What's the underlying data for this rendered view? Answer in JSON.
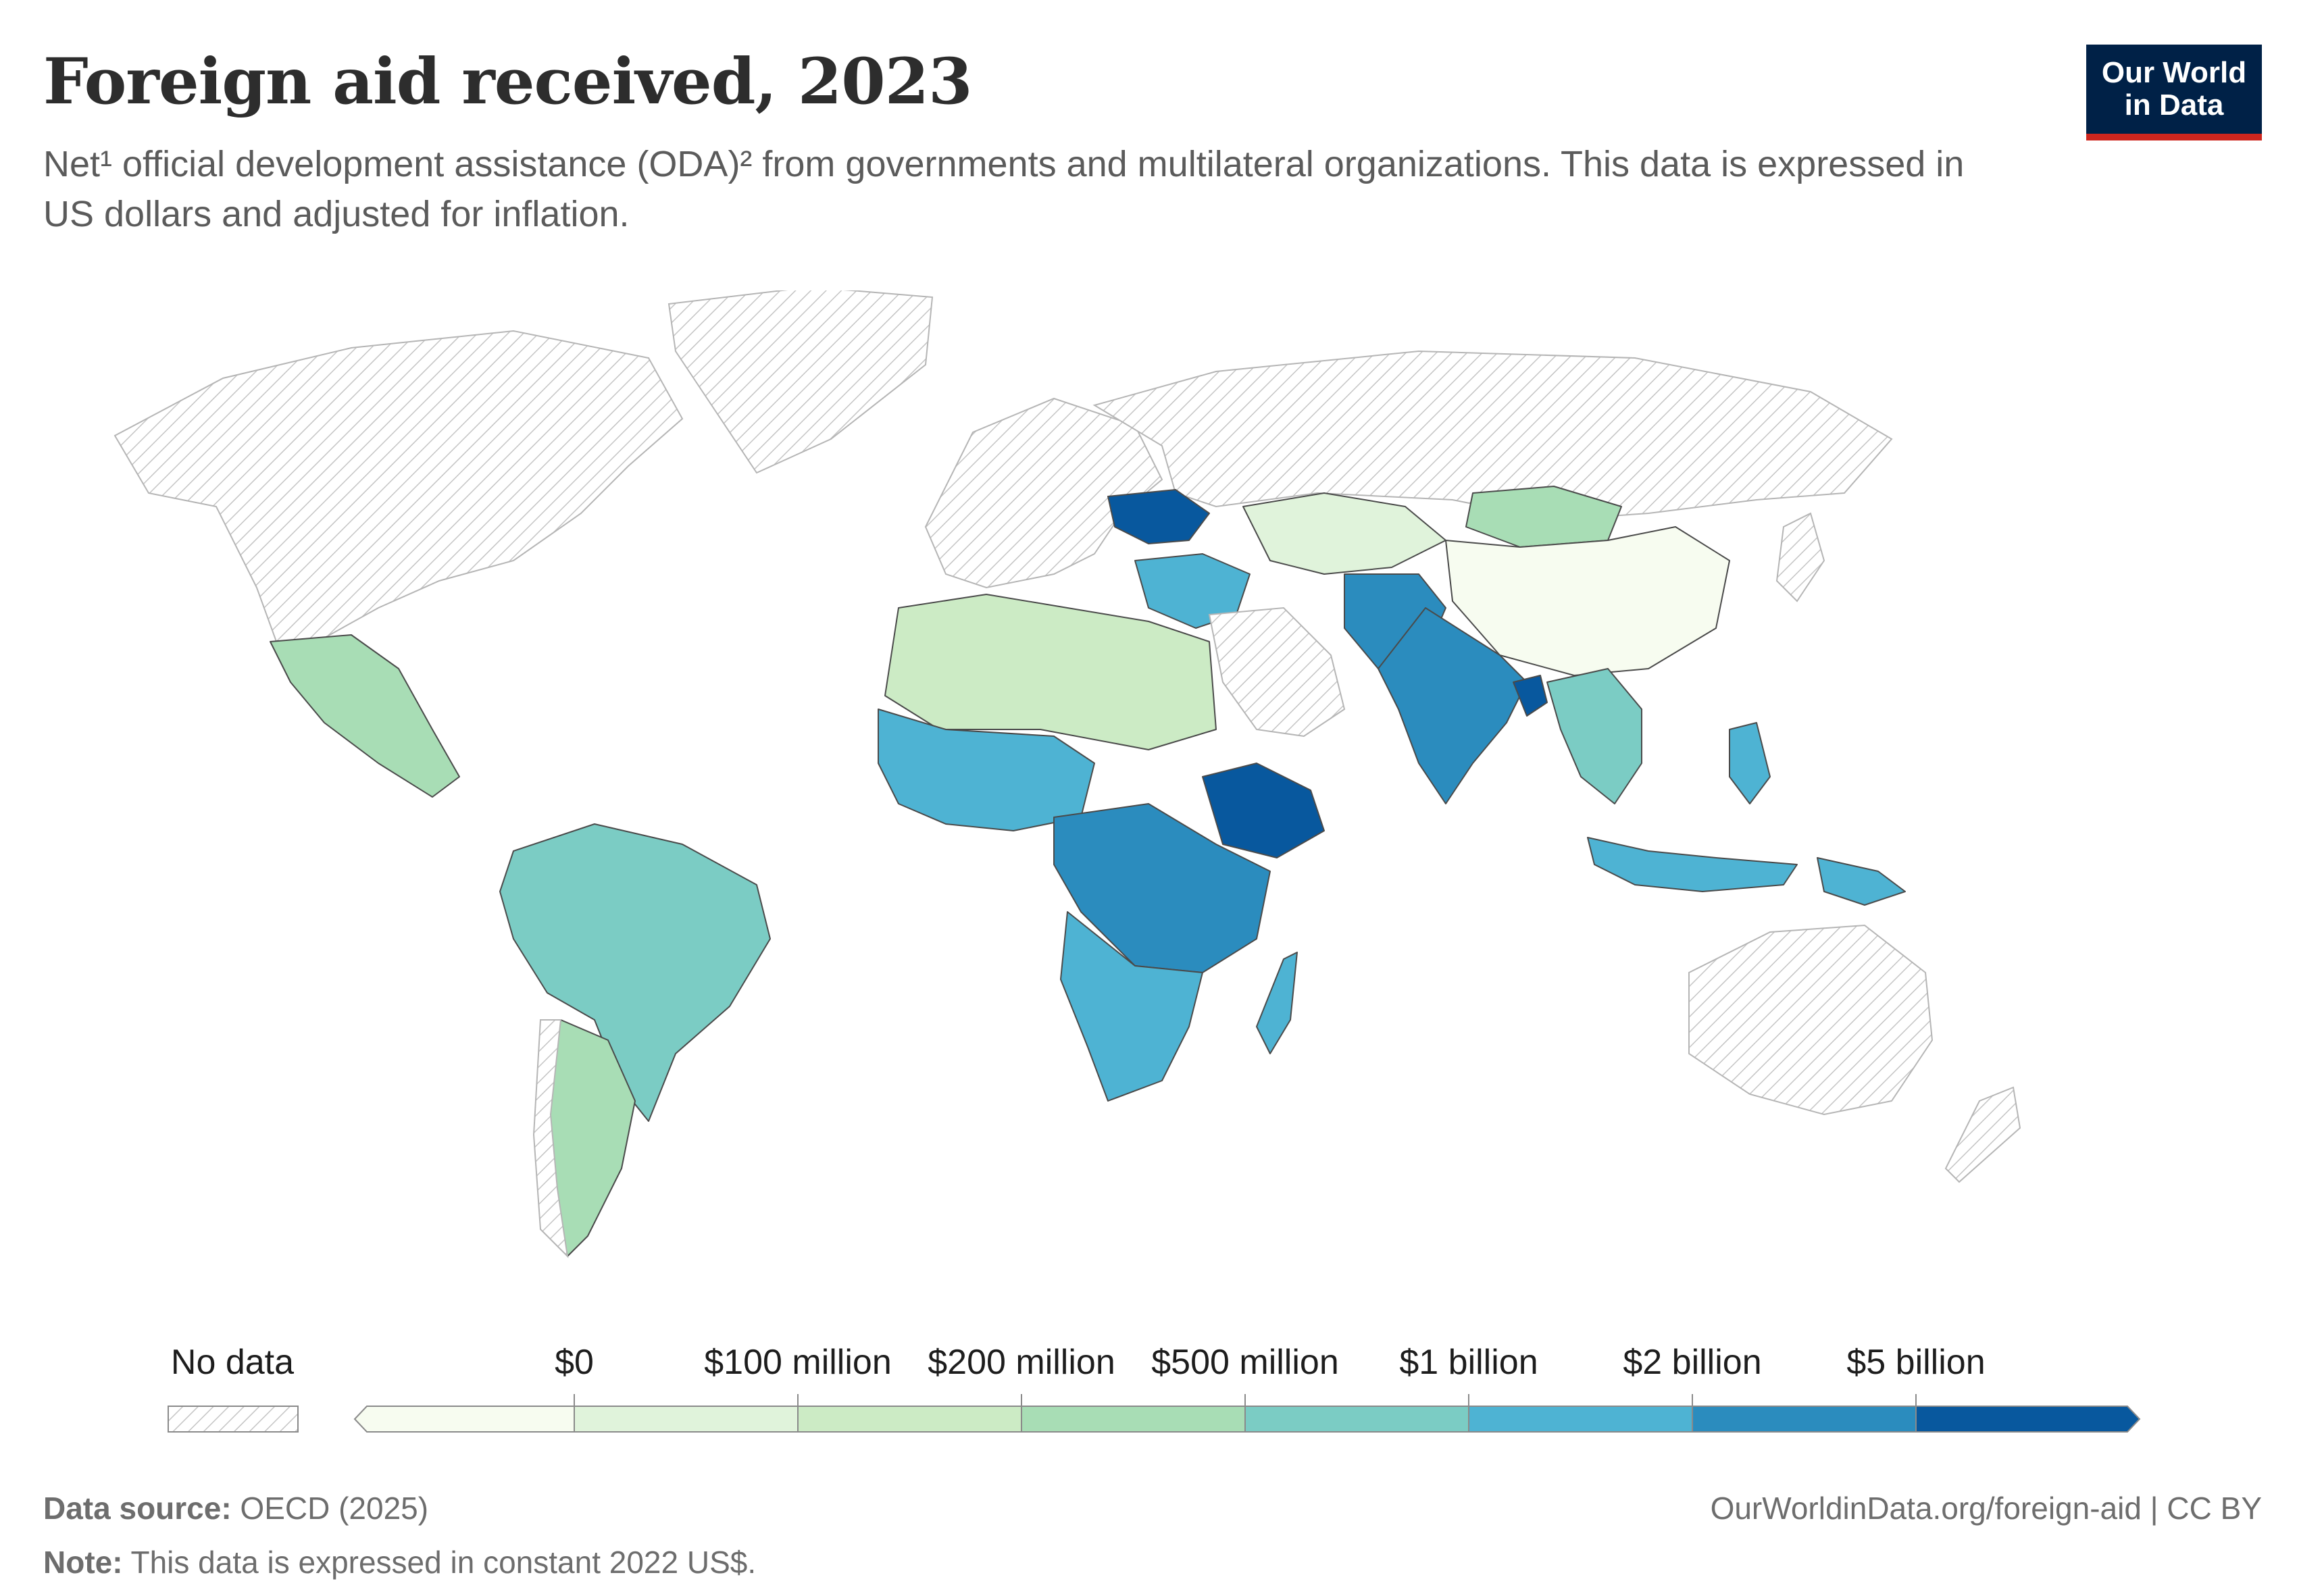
{
  "header": {
    "title": "Foreign aid received, 2023",
    "subtitle": "Net¹ official development assistance (ODA)² from governments and multilateral organizations. This data is expressed in US dollars and adjusted for inflation.",
    "logo_line1": "Our World",
    "logo_line2": "in Data"
  },
  "legend": {
    "no_data_label": "No data",
    "bins": [
      "$0",
      "$100 million",
      "$200 million",
      "$500 million",
      "$1 billion",
      "$2 billion",
      "$5 billion"
    ],
    "colors": [
      "#f7fcf0",
      "#e0f3db",
      "#ccebc5",
      "#a8ddb5",
      "#7bccc4",
      "#4eb3d3",
      "#2b8cbe",
      "#08589e"
    ],
    "no_data_color": "#e8e8e8"
  },
  "map": {
    "metric": "Net official development assistance received",
    "year": 2023,
    "regions": [
      {
        "name": "Americas north",
        "bin": "no data"
      },
      {
        "name": "Greenland",
        "bin": "no data"
      },
      {
        "name": "Mexico",
        "bin": "$200 million-$500 million"
      },
      {
        "name": "Brazil",
        "bin": "$500 million-$1 billion"
      },
      {
        "name": "Argentina",
        "bin": "$200 million-$500 million"
      },
      {
        "name": "Chile",
        "bin": "no data"
      },
      {
        "name": "Europe",
        "bin": "no data"
      },
      {
        "name": "Russia",
        "bin": "no data"
      },
      {
        "name": "Ukraine",
        "bin": ">$5 billion"
      },
      {
        "name": "North Africa",
        "bin": "$100 million-$500 million"
      },
      {
        "name": "West Africa",
        "bin": "$1 billion-$5 billion"
      },
      {
        "name": "Ethiopia",
        "bin": ">$5 billion"
      },
      {
        "name": "Central/East Africa",
        "bin": "$2 billion-$5 billion"
      },
      {
        "name": "Southern Africa",
        "bin": "$1 billion-$2 billion"
      },
      {
        "name": "Madagascar",
        "bin": "$1 billion-$2 billion"
      },
      {
        "name": "Middle East",
        "bin": "$1 billion-$2 billion"
      },
      {
        "name": "Saudi Arabia",
        "bin": "no data"
      },
      {
        "name": "Kazakhstan",
        "bin": "$0-$100 million"
      },
      {
        "name": "Mongolia",
        "bin": "$200 million-$500 million"
      },
      {
        "name": "China",
        "bin": "<$0"
      },
      {
        "name": "Afghanistan/Pakistan",
        "bin": "$2 billion-$5 billion"
      },
      {
        "name": "India",
        "bin": "$2 billion-$5 billion"
      },
      {
        "name": "Bangladesh",
        "bin": ">$5 billion"
      },
      {
        "name": "Southeast Asia",
        "bin": "$500 million-$2 billion"
      },
      {
        "name": "Indonesia",
        "bin": "$1 billion-$2 billion"
      },
      {
        "name": "Philippines",
        "bin": "$1 billion-$2 billion"
      },
      {
        "name": "Papua New Guinea",
        "bin": "$1 billion-$2 billion"
      },
      {
        "name": "Australia",
        "bin": "no data"
      },
      {
        "name": "New Zealand",
        "bin": "no data"
      },
      {
        "name": "Japan",
        "bin": "no data"
      }
    ]
  },
  "footer": {
    "source_label": "Data source:",
    "source_value": " OECD (2025)",
    "note_label": "Note:",
    "note_value": " This data is expressed in constant 2022 US$.",
    "credit": "OurWorldinData.org/foreign-aid | CC BY"
  }
}
